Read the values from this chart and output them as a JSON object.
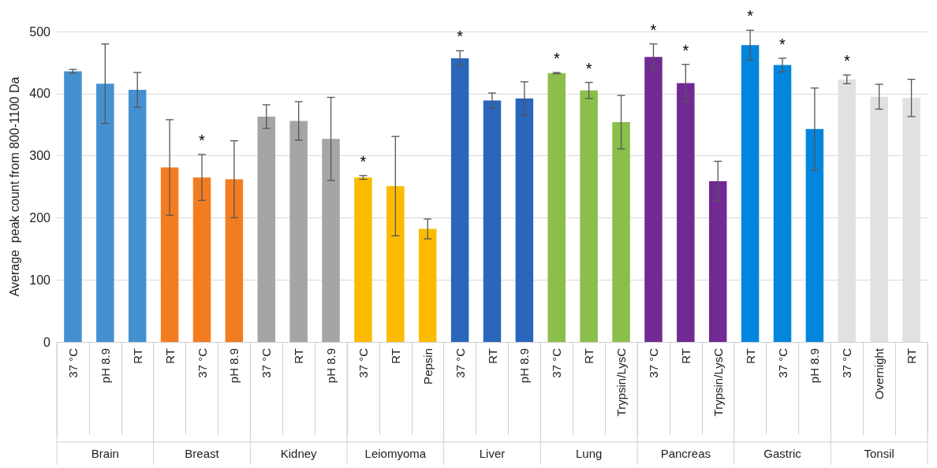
{
  "chart_data": {
    "type": "bar",
    "ylabel": "Average  peak count from 800-1100 Da",
    "categories": [
      "37 °C",
      "pH 8.9",
      "RT",
      "RT",
      "37 °C",
      "pH 8.9",
      "37 °C",
      "RT",
      "pH 8.9",
      "37 °C",
      "RT",
      "Pepsin",
      "37 °C",
      "RT",
      "pH 8.9",
      "37 °C",
      "RT",
      "Trypsin/LysC",
      "37 °C",
      "RT",
      "Trypsin/LysC",
      "RT",
      "37 °C",
      "pH 8.9",
      "37 °C",
      "Overnight",
      "RT"
    ],
    "values": [
      436,
      416,
      406,
      281,
      265,
      262,
      363,
      356,
      327,
      265,
      251,
      182,
      457,
      389,
      392,
      433,
      405,
      354,
      459,
      417,
      259,
      478,
      446,
      343,
      423,
      395,
      393
    ],
    "errors": [
      3,
      64,
      28,
      77,
      37,
      62,
      19,
      31,
      67,
      3,
      80,
      16,
      12,
      12,
      27,
      1,
      13,
      43,
      21,
      30,
      32,
      24,
      11,
      66,
      7,
      20,
      30
    ],
    "colors": [
      "#4590d0",
      "#4590d0",
      "#4590d0",
      "#f47c20",
      "#f47c20",
      "#f47c20",
      "#a5a5a5",
      "#a5a5a5",
      "#a5a5a5",
      "#fdbb00",
      "#fdbb00",
      "#fdbb00",
      "#2a66bb",
      "#2a66bb",
      "#2a66bb",
      "#8bbe4b",
      "#8bbe4b",
      "#8bbe4b",
      "#712a94",
      "#712a94",
      "#712a94",
      "#0285dd",
      "#0285dd",
      "#0285dd",
      "#e1e1e1",
      "#e1e1e1",
      "#e1e1e1"
    ],
    "value_labels": [
      null,
      null,
      null,
      null,
      "*",
      null,
      null,
      null,
      null,
      "*",
      null,
      null,
      "*",
      null,
      null,
      "*",
      "*",
      null,
      "*",
      "*",
      null,
      "*",
      "*",
      null,
      "*",
      null,
      null
    ],
    "annotations": [
      "Brain",
      "Breast",
      "Kidney",
      "Leiomyoma",
      "Liver",
      "Lung",
      "Pancreas",
      "Gastric",
      "Tonsil"
    ],
    "ylim": [
      0,
      500
    ],
    "yticks": [
      0,
      100,
      200,
      300,
      400,
      500
    ],
    "grid": "y"
  }
}
